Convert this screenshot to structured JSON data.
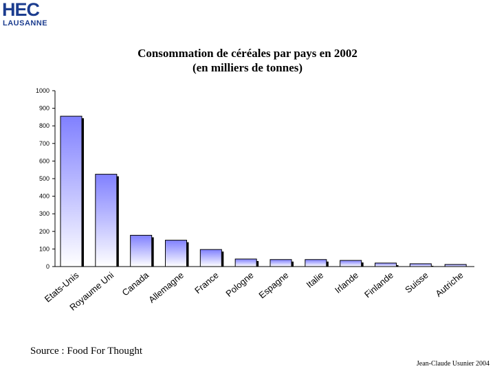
{
  "logo": {
    "line1": "HEC",
    "line2": "LAUSANNE"
  },
  "chart_data": {
    "type": "bar",
    "title": "Consommation de céréales par pays en 2002",
    "subtitle": "(en milliers de tonnes)",
    "categories": [
      "Etats-Unis",
      "Royaume Uni",
      "Canada",
      "Allemagne",
      "France",
      "Pologne",
      "Espagne",
      "Italie",
      "Irlande",
      "Finlande",
      "Suisse",
      "Autriche"
    ],
    "values": [
      855,
      525,
      178,
      150,
      97,
      43,
      40,
      40,
      35,
      20,
      16,
      12
    ],
    "ylim": [
      0,
      1000
    ],
    "yticks": [
      0,
      100,
      200,
      300,
      400,
      500,
      600,
      700,
      800,
      900,
      1000
    ],
    "xlabel": "",
    "ylabel": "",
    "grid": false,
    "colors": {
      "bar_top": "#8080ff",
      "bar_bottom": "#ffffff",
      "shadow": "#000000",
      "bar_border": "#000000"
    }
  },
  "footer": {
    "source": "Source : Food For Thought",
    "author": "Jean-Claude Usunier 2004"
  }
}
